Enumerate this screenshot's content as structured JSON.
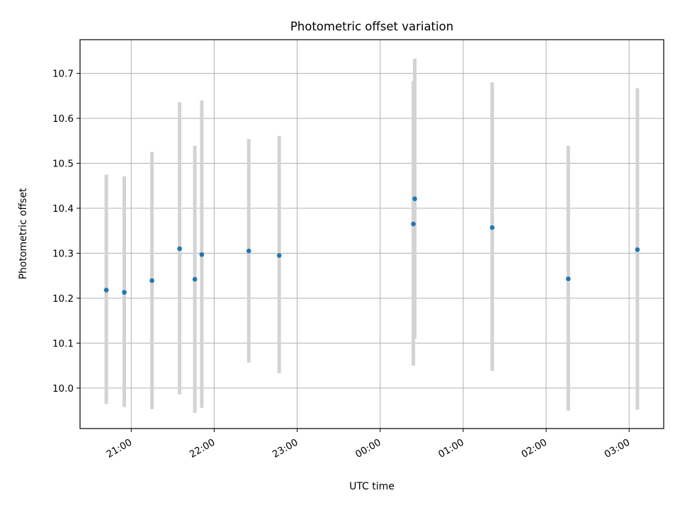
{
  "chart_data": {
    "type": "scatter",
    "title": "Photometric offset variation",
    "xlabel": "UTC time",
    "ylabel": "Photometric offset",
    "x_ticks": [
      "21:00",
      "22:00",
      "23:00",
      "00:00",
      "01:00",
      "02:00",
      "03:00"
    ],
    "y_ticks": [
      "10.0",
      "10.1",
      "10.2",
      "10.3",
      "10.4",
      "10.5",
      "10.6",
      "10.7"
    ],
    "xlim": [
      "20:23",
      "03:25"
    ],
    "ylim": [
      9.91,
      10.775
    ],
    "grid": true,
    "errorbar_color": "#d3d3d3",
    "marker_color": "#1f77b4",
    "series": [
      {
        "points": [
          {
            "x": "20:42",
            "y": 10.218,
            "ylow": 9.965,
            "yhigh": 10.475
          },
          {
            "x": "20:55",
            "y": 10.213,
            "ylow": 9.958,
            "yhigh": 10.471
          },
          {
            "x": "21:15",
            "y": 10.239,
            "ylow": 9.953,
            "yhigh": 10.525
          },
          {
            "x": "21:35",
            "y": 10.31,
            "ylow": 9.986,
            "yhigh": 10.636
          },
          {
            "x": "21:46",
            "y": 10.242,
            "ylow": 9.945,
            "yhigh": 10.539
          },
          {
            "x": "21:51",
            "y": 10.297,
            "ylow": 9.956,
            "yhigh": 10.64
          },
          {
            "x": "22:25",
            "y": 10.305,
            "ylow": 10.057,
            "yhigh": 10.554
          },
          {
            "x": "22:47",
            "y": 10.295,
            "ylow": 10.033,
            "yhigh": 10.561
          },
          {
            "x": "00:24",
            "y": 10.365,
            "ylow": 10.05,
            "yhigh": 10.683
          },
          {
            "x": "00:25",
            "y": 10.421,
            "ylow": 10.11,
            "yhigh": 10.733
          },
          {
            "x": "01:21",
            "y": 10.357,
            "ylow": 10.038,
            "yhigh": 10.68
          },
          {
            "x": "02:16",
            "y": 10.243,
            "ylow": 9.95,
            "yhigh": 10.539
          },
          {
            "x": "03:06",
            "y": 10.308,
            "ylow": 9.952,
            "yhigh": 10.667
          }
        ]
      }
    ]
  }
}
